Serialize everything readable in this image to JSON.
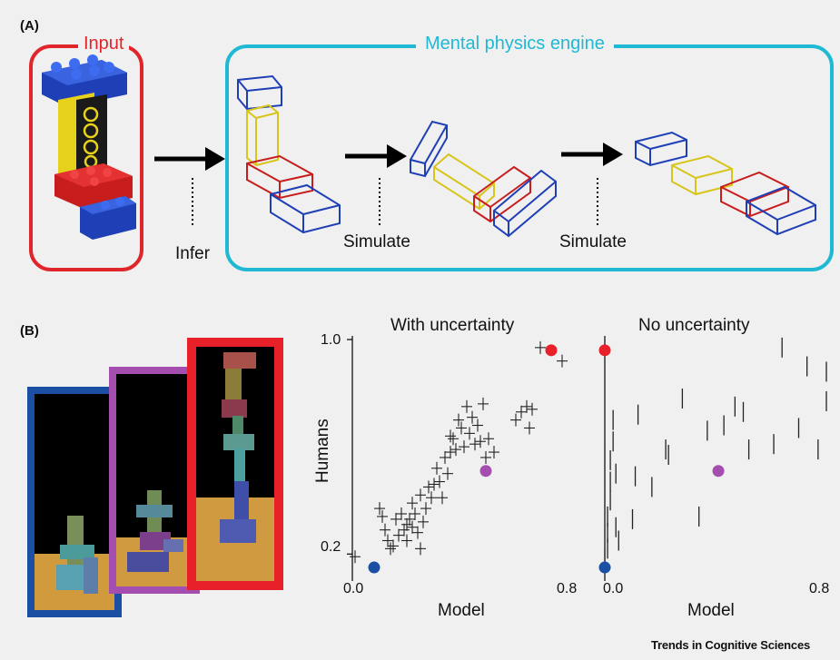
{
  "panel_a": {
    "label": "(A)",
    "input_title": "Input",
    "engine_title": "Mental physics engine",
    "step_infer": "Infer",
    "step_simulate_1": "Simulate",
    "step_simulate_2": "Simulate",
    "colors": {
      "input_frame": "#e0262b",
      "engine_frame": "#1fb9d4"
    }
  },
  "panel_b": {
    "label": "(B)",
    "stimulus_frame_colors": [
      "#1a4fa3",
      "#a44fb0",
      "#e8202a"
    ]
  },
  "chart_data": [
    {
      "type": "scatter",
      "title": "With uncertainty",
      "xlabel": "Model",
      "ylabel": "Humans",
      "xlim": [
        0.0,
        0.8
      ],
      "ylim": [
        0.14,
        1.0
      ],
      "x_ticks": [
        "0.0",
        "0.8"
      ],
      "y_ticks": [
        "1.0",
        "0.2"
      ],
      "errorbars": "crosses",
      "points": [
        [
          0.01,
          0.19
        ],
        [
          0.1,
          0.37
        ],
        [
          0.11,
          0.34
        ],
        [
          0.12,
          0.29
        ],
        [
          0.13,
          0.25
        ],
        [
          0.14,
          0.22
        ],
        [
          0.15,
          0.23
        ],
        [
          0.16,
          0.33
        ],
        [
          0.17,
          0.27
        ],
        [
          0.18,
          0.35
        ],
        [
          0.19,
          0.29
        ],
        [
          0.2,
          0.31
        ],
        [
          0.2,
          0.25
        ],
        [
          0.21,
          0.33
        ],
        [
          0.22,
          0.3
        ],
        [
          0.22,
          0.39
        ],
        [
          0.23,
          0.35
        ],
        [
          0.24,
          0.28
        ],
        [
          0.25,
          0.22
        ],
        [
          0.25,
          0.42
        ],
        [
          0.26,
          0.32
        ],
        [
          0.27,
          0.37
        ],
        [
          0.28,
          0.45
        ],
        [
          0.29,
          0.41
        ],
        [
          0.3,
          0.46
        ],
        [
          0.31,
          0.52
        ],
        [
          0.32,
          0.47
        ],
        [
          0.33,
          0.41
        ],
        [
          0.34,
          0.56
        ],
        [
          0.35,
          0.5
        ],
        [
          0.36,
          0.58
        ],
        [
          0.36,
          0.64
        ],
        [
          0.37,
          0.63
        ],
        [
          0.38,
          0.59
        ],
        [
          0.39,
          0.7
        ],
        [
          0.4,
          0.67
        ],
        [
          0.41,
          0.6
        ],
        [
          0.42,
          0.75
        ],
        [
          0.43,
          0.65
        ],
        [
          0.44,
          0.71
        ],
        [
          0.45,
          0.61
        ],
        [
          0.46,
          0.68
        ],
        [
          0.47,
          0.62
        ],
        [
          0.48,
          0.76
        ],
        [
          0.49,
          0.56
        ],
        [
          0.5,
          0.63
        ],
        [
          0.52,
          0.58
        ],
        [
          0.6,
          0.7
        ],
        [
          0.62,
          0.73
        ],
        [
          0.64,
          0.75
        ],
        [
          0.65,
          0.67
        ],
        [
          0.66,
          0.74
        ],
        [
          0.69,
          0.97
        ],
        [
          0.77,
          0.92
        ]
      ],
      "highlights": [
        {
          "x": 0.08,
          "y": 0.15,
          "color": "#1a4fa3"
        },
        {
          "x": 0.49,
          "y": 0.51,
          "color": "#a44fb0"
        },
        {
          "x": 0.73,
          "y": 0.96,
          "color": "#e8202a"
        }
      ]
    },
    {
      "type": "scatter",
      "title": "No uncertainty",
      "xlabel": "Model",
      "ylabel": "",
      "xlim": [
        0.0,
        0.8
      ],
      "ylim": [
        0.14,
        1.0
      ],
      "x_ticks": [
        "0.0",
        "0.8"
      ],
      "y_ticks": [],
      "errorbars": "vertical",
      "points": [
        [
          0.0,
          0.18
        ],
        [
          0.01,
          0.22
        ],
        [
          0.01,
          0.28
        ],
        [
          0.01,
          0.34
        ],
        [
          0.02,
          0.4
        ],
        [
          0.02,
          0.47
        ],
        [
          0.02,
          0.55
        ],
        [
          0.03,
          0.62
        ],
        [
          0.03,
          0.7
        ],
        [
          0.04,
          0.3
        ],
        [
          0.04,
          0.5
        ],
        [
          0.05,
          0.25
        ],
        [
          0.1,
          0.33
        ],
        [
          0.11,
          0.49
        ],
        [
          0.12,
          0.72
        ],
        [
          0.17,
          0.45
        ],
        [
          0.22,
          0.59
        ],
        [
          0.23,
          0.57
        ],
        [
          0.28,
          0.78
        ],
        [
          0.34,
          0.34
        ],
        [
          0.37,
          0.66
        ],
        [
          0.43,
          0.68
        ],
        [
          0.47,
          0.75
        ],
        [
          0.5,
          0.73
        ],
        [
          0.52,
          0.59
        ],
        [
          0.61,
          0.61
        ],
        [
          0.64,
          0.97
        ],
        [
          0.7,
          0.67
        ],
        [
          0.73,
          0.9
        ],
        [
          0.77,
          0.59
        ],
        [
          0.8,
          0.88
        ],
        [
          0.8,
          0.77
        ]
      ],
      "highlights": [
        {
          "x": 0.0,
          "y": 0.15,
          "color": "#1a4fa3"
        },
        {
          "x": 0.0,
          "y": 0.96,
          "color": "#e8202a"
        },
        {
          "x": 0.41,
          "y": 0.51,
          "color": "#a44fb0"
        }
      ]
    }
  ],
  "credit": "Trends in Cognitive Sciences"
}
